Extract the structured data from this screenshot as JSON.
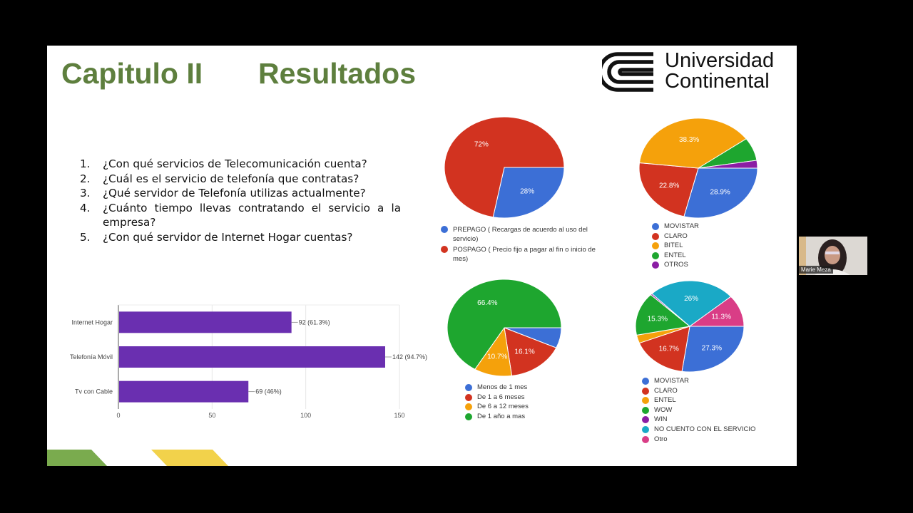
{
  "slide": {
    "title_chapter": "Capitulo II",
    "title_section": "Resultados",
    "logo": {
      "icon": "universidad-continental-logo-icon",
      "line1": "Universidad",
      "line2": "Continental"
    },
    "questions": [
      {
        "num": "1.",
        "text": "¿Con qué servicios de Telecomunicación cuenta?"
      },
      {
        "num": "2.",
        "text": "¿Cuál es el servicio de telefonía que contratas?"
      },
      {
        "num": "3.",
        "text": "¿Qué servidor de Telefonía utilizas actualmente?"
      },
      {
        "num": "4.",
        "text": "¿Cuánto tiempo llevas contratando el servicio a la empresa?"
      },
      {
        "num": "5.",
        "text": "¿Con qué servidor de Internet Hogar cuentas?"
      }
    ],
    "decor_colors": {
      "green": "#7aab4e",
      "yellow": "#f2d24b"
    }
  },
  "video_tile": {
    "participant_name": "Marie Meza"
  },
  "chart_data": [
    {
      "type": "bar",
      "orientation": "horizontal",
      "title": "",
      "categories": [
        "Internet Hogar",
        "Telefonía Móvil",
        "Tv con Cable"
      ],
      "values": [
        92,
        142,
        69
      ],
      "data_labels": [
        "92 (61.3%)",
        "142 (94.7%)",
        "69 (46%)"
      ],
      "xlim": [
        0,
        150
      ],
      "xticks": [
        0,
        50,
        100,
        150
      ],
      "grid": true,
      "color": "#6a2fb0"
    },
    {
      "type": "pie",
      "title": "",
      "labels": [
        "PREPAGO ( Recargas de acuerdo al uso del servicio)",
        "POSPAGO ( Precio fijo a pagar al fin o inicio de mes)"
      ],
      "values": [
        28,
        72
      ],
      "data_labels": [
        "28%",
        "72%"
      ],
      "colors": [
        "#3c6fd6",
        "#d23320"
      ],
      "legend_position": "bottom"
    },
    {
      "type": "pie",
      "title": "",
      "labels": [
        "MOVISTAR",
        "CLARO",
        "BITEL",
        "ENTEL",
        "OTROS"
      ],
      "values": [
        28.9,
        22.8,
        38.3,
        7.5,
        2.5
      ],
      "data_labels": [
        "28.9%",
        "22.8%",
        "38.3%",
        "",
        ""
      ],
      "colors": [
        "#3c6fd6",
        "#d23320",
        "#f5a10b",
        "#1ea62f",
        "#8b1da4"
      ],
      "legend_position": "bottom"
    },
    {
      "type": "pie",
      "title": "",
      "labels": [
        "Menos de 1 mes",
        "De 1 a 6 meses",
        "De 6 a 12 meses",
        "De 1 año a mas"
      ],
      "values": [
        6.8,
        16.1,
        10.7,
        66.4
      ],
      "data_labels": [
        "",
        "16.1%",
        "10.7%",
        "66.4%"
      ],
      "colors": [
        "#3c6fd6",
        "#d23320",
        "#f5a10b",
        "#1ea62f"
      ],
      "legend_position": "bottom"
    },
    {
      "type": "pie",
      "title": "",
      "labels": [
        "MOVISTAR",
        "CLARO",
        "ENTEL",
        "WOW",
        "WIN",
        "NO CUENTO CON EL SERVICIO",
        "Otro"
      ],
      "values": [
        27.3,
        16.7,
        2.9,
        15.3,
        0.5,
        26,
        11.3
      ],
      "data_labels": [
        "27.3%",
        "16.7%",
        "",
        "15.3%",
        "",
        "26%",
        "11.3%"
      ],
      "colors": [
        "#3c6fd6",
        "#d23320",
        "#f5a10b",
        "#1ea62f",
        "#8b1da4",
        "#1aa9c6",
        "#d93d86"
      ],
      "legend_position": "bottom"
    }
  ]
}
